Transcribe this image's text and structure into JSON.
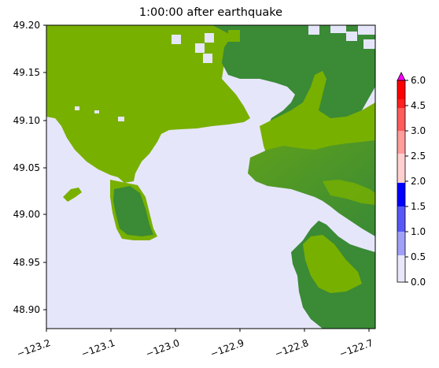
{
  "title": "1:00:00 after earthquake",
  "map": {
    "x_ticks": [
      "−123.2",
      "−123.1",
      "−123.0",
      "−122.9",
      "−122.8",
      "−122.7"
    ],
    "y_ticks": [
      "49.20",
      "49.15",
      "49.10",
      "49.05",
      "49.00",
      "48.95",
      "48.90"
    ],
    "xlim": [
      -123.2,
      -122.69
    ],
    "ylim": [
      48.88,
      49.2
    ]
  },
  "colorbar": {
    "ticks": [
      "0.0",
      "0.5",
      "1.0",
      "1.5",
      "2.0",
      "2.5",
      "3.0",
      "3.5",
      "4.5",
      "6.0"
    ],
    "colors": [
      "#e8e8fa",
      "#a0a0f8",
      "#5858f8",
      "#0000ff",
      "#ffd0d0",
      "#ff9c9c",
      "#ff5c5c",
      "#ff2020",
      "#ff0000"
    ],
    "extend_color": "#ff00ff"
  },
  "colors": {
    "water": "#e6e6fa",
    "lowland": "#78b000",
    "highland": "#3a8a36",
    "land_mid": "#5ea01c"
  }
}
